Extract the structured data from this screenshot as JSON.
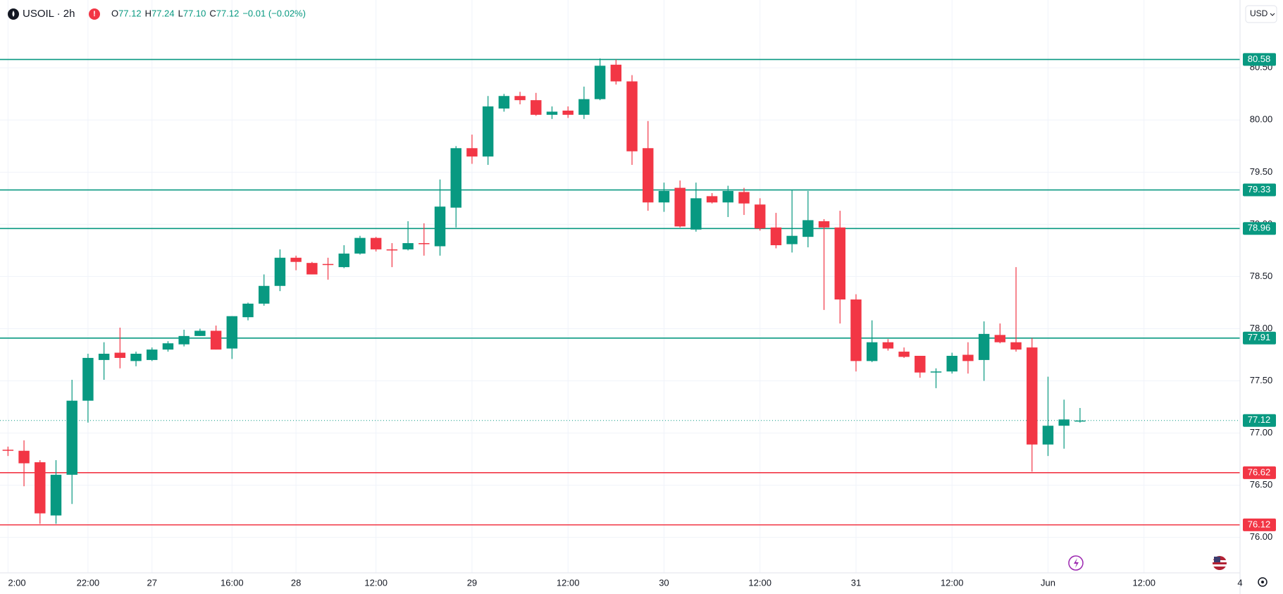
{
  "chart_data": {
    "type": "candlestick",
    "title": "USOIL · 2h",
    "quote": [
      {
        "key": "O",
        "value": "77.12"
      },
      {
        "key": "H",
        "value": "77.24"
      },
      {
        "key": "L",
        "value": "77.10"
      },
      {
        "key": "C",
        "value": "77.12"
      }
    ],
    "change": "−0.01 (−0.02%)",
    "currency": "USD",
    "up_color": "#089981",
    "down_color": "#f23645",
    "open": [
      76.84,
      76.83,
      76.72,
      76.21,
      76.6,
      77.31,
      77.7,
      77.77,
      77.69,
      77.7,
      77.8,
      77.85,
      77.93,
      77.98,
      77.81,
      78.11,
      78.24,
      78.41,
      78.68,
      78.63,
      78.62,
      78.59,
      78.72,
      78.87,
      78.76,
      78.76,
      78.82,
      78.79,
      79.16,
      79.73,
      79.65,
      80.11,
      80.23,
      80.19,
      80.05,
      80.09,
      80.05,
      80.2,
      80.53,
      80.37,
      79.73,
      79.21,
      79.35,
      78.95,
      79.27,
      79.21,
      79.31,
      79.19,
      78.97,
      78.81,
      78.88,
      79.03,
      78.97,
      78.28,
      77.69,
      77.87,
      77.78,
      77.74,
      77.58,
      77.59,
      77.75,
      77.7,
      77.94,
      77.87,
      77.82,
      76.89,
      77.07,
      77.12
    ],
    "high": [
      76.87,
      76.93,
      76.74,
      76.74,
      77.51,
      77.76,
      77.87,
      78.01,
      77.78,
      77.82,
      77.88,
      77.99,
      78.0,
      78.03,
      78.12,
      78.25,
      78.52,
      78.76,
      78.7,
      78.64,
      78.68,
      78.8,
      78.89,
      78.88,
      78.82,
      79.03,
      79.01,
      79.43,
      79.75,
      79.86,
      80.23,
      80.25,
      80.27,
      80.26,
      80.13,
      80.13,
      80.32,
      80.59,
      80.58,
      80.43,
      79.99,
      79.4,
      79.42,
      79.4,
      79.3,
      79.37,
      79.35,
      79.25,
      79.11,
      79.33,
      79.32,
      79.05,
      79.13,
      78.33,
      78.08,
      77.9,
      77.82,
      77.74,
      77.62,
      77.77,
      77.87,
      78.07,
      78.05,
      78.59,
      77.91,
      77.54,
      77.32,
      77.24
    ],
    "low": [
      76.78,
      76.49,
      76.13,
      76.13,
      76.32,
      77.1,
      77.51,
      77.62,
      77.64,
      77.69,
      77.78,
      77.83,
      77.93,
      77.8,
      77.71,
      78.08,
      78.22,
      78.36,
      78.56,
      78.52,
      78.47,
      78.58,
      78.71,
      78.74,
      78.59,
      78.75,
      78.7,
      78.7,
      78.97,
      79.58,
      79.57,
      80.08,
      80.15,
      80.04,
      80.01,
      80.02,
      80.01,
      80.19,
      80.34,
      79.57,
      79.13,
      79.12,
      78.97,
      78.93,
      79.2,
      79.07,
      79.09,
      78.94,
      78.77,
      78.73,
      78.78,
      78.18,
      78.05,
      77.59,
      77.68,
      77.79,
      77.72,
      77.53,
      77.43,
      77.57,
      77.57,
      77.5,
      77.86,
      77.78,
      76.63,
      76.78,
      76.85,
      77.1
    ],
    "close": [
      76.83,
      76.71,
      76.23,
      76.6,
      77.31,
      77.72,
      77.76,
      77.72,
      77.76,
      77.8,
      77.86,
      77.93,
      77.98,
      77.8,
      78.12,
      78.24,
      78.41,
      78.68,
      78.64,
      78.52,
      78.61,
      78.72,
      78.87,
      78.76,
      78.75,
      78.82,
      78.81,
      79.17,
      79.73,
      79.65,
      80.13,
      80.23,
      80.19,
      80.05,
      80.08,
      80.05,
      80.2,
      80.52,
      80.37,
      79.7,
      79.21,
      79.32,
      78.98,
      79.25,
      79.21,
      79.32,
      79.2,
      78.96,
      78.8,
      78.89,
      79.04,
      78.97,
      78.28,
      77.69,
      77.87,
      77.81,
      77.73,
      77.58,
      77.59,
      77.74,
      77.69,
      77.95,
      77.87,
      77.8,
      76.89,
      77.07,
      77.13,
      77.12
    ],
    "xlim": [
      -0.5,
      77
    ],
    "xticks": [
      {
        "value": 0,
        "label": "2:00"
      },
      {
        "value": 5,
        "label": "22:00"
      },
      {
        "value": 9,
        "label": "27"
      },
      {
        "value": 14,
        "label": "16:00"
      },
      {
        "value": 18,
        "label": "28"
      },
      {
        "value": 23,
        "label": "12:00"
      },
      {
        "value": 29,
        "label": "29"
      },
      {
        "value": 35,
        "label": "12:00"
      },
      {
        "value": 41,
        "label": "30"
      },
      {
        "value": 47,
        "label": "12:00"
      },
      {
        "value": 53,
        "label": "31"
      },
      {
        "value": 59,
        "label": "12:00"
      },
      {
        "value": 65,
        "label": "Jun"
      },
      {
        "value": 71,
        "label": "12:00"
      },
      {
        "value": 77,
        "label": "4"
      }
    ],
    "ylim": [
      75.66,
      81.15
    ],
    "yticks": [
      {
        "value": 76,
        "label": "76.00"
      },
      {
        "value": 76.5,
        "label": "76.50"
      },
      {
        "value": 77,
        "label": "77.00"
      },
      {
        "value": 77.5,
        "label": "77.50"
      },
      {
        "value": 78,
        "label": "78.00"
      },
      {
        "value": 78.5,
        "label": "78.50"
      },
      {
        "value": 79,
        "label": "79.00"
      },
      {
        "value": 79.5,
        "label": "79.50"
      },
      {
        "value": 80,
        "label": "80.00"
      },
      {
        "value": 80.5,
        "label": "80.50"
      }
    ],
    "grid": true,
    "levels": [
      {
        "value": 80.58,
        "color": "#089981"
      },
      {
        "value": 79.33,
        "color": "#089981"
      },
      {
        "value": 78.96,
        "color": "#089981"
      },
      {
        "value": 77.91,
        "color": "#089981"
      },
      {
        "value": 76.62,
        "color": "#f23645"
      },
      {
        "value": 76.12,
        "color": "#f23645"
      },
      {
        "value": 77.12,
        "color": "#089981",
        "style": "dotted"
      }
    ]
  }
}
